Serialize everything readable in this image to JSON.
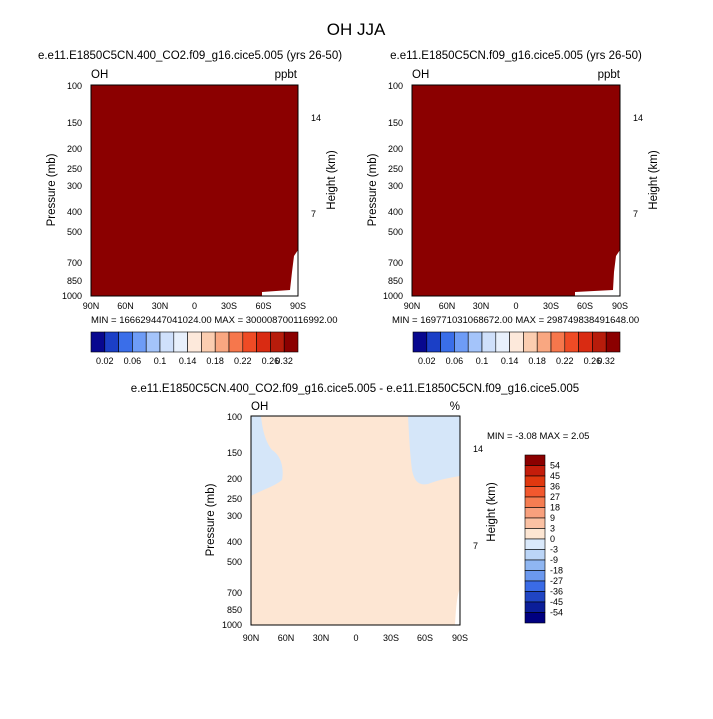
{
  "title": "OH JJA",
  "chart_data": [
    {
      "type": "heatmap",
      "title": "e.e11.E1850C5CN.400_CO2.f09_g16.cice5.005 (yrs 26-50)",
      "left_label": "OH",
      "right_label": "ppbt",
      "xlabel": "",
      "ylabel": "Pressure (mb)",
      "ylabel_right": "Height (km)",
      "x_ticks": [
        "90N",
        "60N",
        "30N",
        "0",
        "30S",
        "60S",
        "90S"
      ],
      "y_ticks": [
        "100",
        "150",
        "200",
        "250",
        "300",
        "400",
        "500",
        "700",
        "850",
        "1000"
      ],
      "y_ticks_right": [
        "14",
        "7"
      ],
      "ylim": [
        1000,
        100
      ],
      "min_max_text": "MIN = 166629447041024.00   MAX = 300008700116992.00",
      "fill_value": "above 0.32 everywhere (saturated)"
    },
    {
      "type": "heatmap",
      "title": "e.e11.E1850C5CN.f09_g16.cice5.005 (yrs 26-50)",
      "left_label": "OH",
      "right_label": "ppbt",
      "xlabel": "",
      "ylabel": "Pressure (mb)",
      "ylabel_right": "Height (km)",
      "x_ticks": [
        "90N",
        "60N",
        "30N",
        "0",
        "30S",
        "60S",
        "90S"
      ],
      "y_ticks": [
        "100",
        "150",
        "200",
        "250",
        "300",
        "400",
        "500",
        "700",
        "850",
        "1000"
      ],
      "y_ticks_right": [
        "14",
        "7"
      ],
      "ylim": [
        1000,
        100
      ],
      "min_max_text": "MIN = 169771031068672.00   MAX = 298749838491648.00",
      "fill_value": "above 0.32 everywhere (saturated)"
    },
    {
      "type": "heatmap",
      "title": "e.e11.E1850C5CN.400_CO2.f09_g16.cice5.005 - e.e11.E1850C5CN.f09_g16.cice5.005",
      "left_label": "OH",
      "right_label": "%",
      "xlabel": "",
      "ylabel": "Pressure (mb)",
      "ylabel_right": "Height (km)",
      "x_ticks": [
        "90N",
        "60N",
        "30N",
        "0",
        "30S",
        "60S",
        "90S"
      ],
      "y_ticks": [
        "100",
        "150",
        "200",
        "250",
        "300",
        "400",
        "500",
        "700",
        "850",
        "1000"
      ],
      "y_ticks_right": [
        "14",
        "7"
      ],
      "ylim": [
        1000,
        100
      ],
      "min_max_text": "MIN =  -3.08  MAX =    2.05",
      "fill_value": "mostly 0 to 3, with -3 to 0 regions near 90N above ~250 mb and near 40S-90S above ~200 mb"
    }
  ],
  "colorbars": {
    "top": {
      "labels": [
        "0.02",
        "0.06",
        "0.1",
        "0.14",
        "0.18",
        "0.22",
        "0.26",
        "0.32"
      ],
      "colors": [
        "#08088f",
        "#1b3fc6",
        "#3a6ee9",
        "#6e9cf6",
        "#a4c4fa",
        "#cfe0fb",
        "#e8f0fc",
        "#fde9db",
        "#fbcdb0",
        "#f9a781",
        "#f6774c",
        "#ef4b25",
        "#d92b12",
        "#b71c0b",
        "#8b0000"
      ]
    },
    "diff": {
      "labels": [
        "54",
        "45",
        "36",
        "27",
        "18",
        "9",
        "3",
        "0",
        "-3",
        "-9",
        "-18",
        "-27",
        "-36",
        "-45",
        "-54"
      ],
      "colors": [
        "#8b0000",
        "#c41d0b",
        "#e0380f",
        "#f2582e",
        "#f57d52",
        "#f8a07d",
        "#fbc1a3",
        "#fde6d3",
        "#dae9fb",
        "#bbd5f7",
        "#8fb6f2",
        "#6b98ee",
        "#3a6be6",
        "#2045c4",
        "#0b1e99",
        "#000080"
      ]
    }
  },
  "colors": {
    "saturated_fill": "#8b0000",
    "diff_positive_small": "#fde6d3",
    "diff_negative_small": "#d5e6f9"
  }
}
